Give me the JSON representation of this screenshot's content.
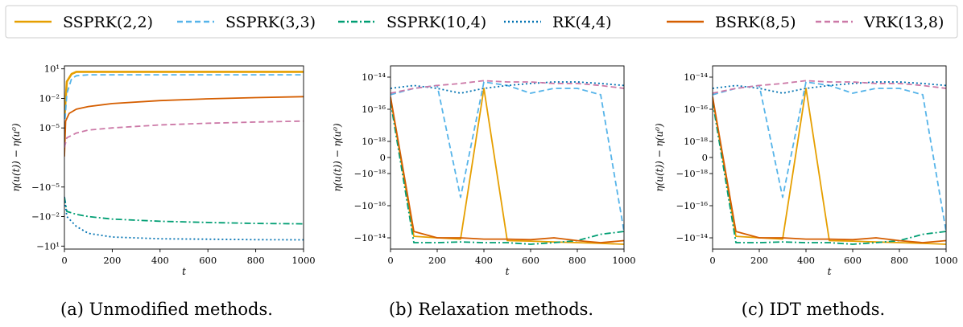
{
  "legend": [
    {
      "name": "SSPRK(2,2)",
      "color": "#e69f00",
      "dash": "solid"
    },
    {
      "name": "SSPRK(3,3)",
      "color": "#56b4e9",
      "dash": "dashed"
    },
    {
      "name": "SSPRK(10,4)",
      "color": "#009e73",
      "dash": "dashdot"
    },
    {
      "name": "RK(4,4)",
      "color": "#0072b2",
      "dash": "dotted"
    },
    {
      "name": "BSRK(8,5)",
      "color": "#d55e00",
      "dash": "solid"
    },
    {
      "name": "VRK(13,8)",
      "color": "#cc79a7",
      "dash": "dashed"
    }
  ],
  "chart_data": [
    {
      "type": "line",
      "caption": "(a) Unmodified methods.",
      "xlabel": "t",
      "ylabel": "η(u(t)) − η(u⁰)",
      "yscale": "symlog",
      "xlim": [
        0,
        1000
      ],
      "xticks": [
        "0",
        "200",
        "400",
        "600",
        "800",
        "1000"
      ],
      "yticks": [
        "10¹",
        "10⁻²",
        "10⁻⁵",
        "−10⁻⁵",
        "−10⁻²",
        "−10¹"
      ],
      "series": [
        {
          "name": "SSPRK(2,2)",
          "x": [
            0,
            10,
            30,
            50,
            100,
            1000
          ],
          "y": [
            0.0001,
            0.5,
            3,
            5,
            5,
            5
          ]
        },
        {
          "name": "SSPRK(3,3)",
          "x": [
            0,
            10,
            30,
            50,
            100,
            1000
          ],
          "y": [
            1e-05,
            0.03,
            1,
            2,
            2.5,
            2.5
          ]
        },
        {
          "name": "SSPRK(10,4)",
          "x": [
            0,
            10,
            50,
            100,
            200,
            400,
            600,
            800,
            1000
          ],
          "y": [
            -0.0001,
            -0.003,
            -0.006,
            -0.01,
            -0.018,
            -0.03,
            -0.04,
            -0.05,
            -0.055
          ]
        },
        {
          "name": "RK(4,4)",
          "x": [
            0,
            10,
            50,
            100,
            200,
            400,
            600,
            800,
            1000
          ],
          "y": [
            -0.0001,
            -0.01,
            -0.1,
            -0.5,
            -1.2,
            -1.8,
            -2.0,
            -2.2,
            -2.3
          ]
        },
        {
          "name": "BSRK(8,5)",
          "x": [
            0,
            5,
            20,
            50,
            100,
            200,
            400,
            600,
            800,
            1000
          ],
          "y": [
            1e-08,
            5e-05,
            0.0003,
            0.0008,
            0.0015,
            0.003,
            0.006,
            0.009,
            0.012,
            0.015
          ]
        },
        {
          "name": "VRK(13,8)",
          "x": [
            0,
            10,
            50,
            100,
            200,
            400,
            600,
            800,
            1000
          ],
          "y": [
            1e-07,
            1e-06,
            3e-06,
            6e-06,
            1e-05,
            2e-05,
            3e-05,
            4e-05,
            5e-05
          ]
        }
      ]
    },
    {
      "type": "line",
      "caption": "(b) Relaxation methods.",
      "xlabel": "t",
      "ylabel": "η(u(t)) − η(u⁰)",
      "yscale": "symlog",
      "xlim": [
        0,
        1000
      ],
      "xticks": [
        "0",
        "200",
        "400",
        "600",
        "800",
        "1000"
      ],
      "yticks": [
        "10⁻¹⁴",
        "10⁻¹⁶",
        "10⁻¹⁸",
        "0",
        "−10⁻¹⁸",
        "−10⁻¹⁶",
        "−10⁻¹⁴"
      ],
      "series": [
        {
          "name": "SSPRK(2,2)",
          "x": [
            0,
            100,
            200,
            300,
            400,
            500,
            600,
            700,
            800,
            900,
            1000
          ],
          "y": [
            5e-16,
            -8e-15,
            -1e-14,
            -1.2e-14,
            2e-15,
            -1.5e-14,
            -1.6e-14,
            -1.8e-14,
            -2e-14,
            -2.2e-14,
            -2.5e-14
          ]
        },
        {
          "name": "SSPRK(3,3)",
          "x": [
            0,
            100,
            200,
            300,
            400,
            500,
            600,
            700,
            800,
            900,
            1000
          ],
          "y": [
            8e-16,
            2e-15,
            3e-15,
            -3e-17,
            5e-15,
            3e-15,
            1e-15,
            2e-15,
            2e-15,
            8e-16,
            -4e-15
          ]
        },
        {
          "name": "SSPRK(10,4)",
          "x": [
            0,
            100,
            200,
            300,
            400,
            500,
            600,
            700,
            800,
            900,
            1000
          ],
          "y": [
            3e-16,
            -2e-14,
            -2e-14,
            -1.8e-14,
            -2e-14,
            -2e-14,
            -2.5e-14,
            -2e-14,
            -1.5e-14,
            -6e-15,
            -4e-15
          ]
        },
        {
          "name": "RK(4,4)",
          "x": [
            0,
            100,
            200,
            300,
            400,
            500,
            600,
            700,
            800,
            900,
            1000
          ],
          "y": [
            2e-15,
            3e-15,
            2e-15,
            1e-15,
            2e-15,
            3e-15,
            4e-15,
            5e-15,
            5e-15,
            4e-15,
            3e-15
          ]
        },
        {
          "name": "BSRK(8,5)",
          "x": [
            0,
            100,
            200,
            300,
            400,
            500,
            600,
            700,
            800,
            900,
            1000
          ],
          "y": [
            6e-16,
            -4e-15,
            -1e-14,
            -1e-14,
            -1.2e-14,
            -1.2e-14,
            -1.3e-14,
            -1e-14,
            -1.5e-14,
            -2e-14,
            -1.5e-14
          ]
        },
        {
          "name": "VRK(13,8)",
          "x": [
            0,
            100,
            200,
            300,
            400,
            500,
            600,
            700,
            800,
            900,
            1000
          ],
          "y": [
            1e-15,
            2e-15,
            3e-15,
            4e-15,
            6e-15,
            5e-15,
            5e-15,
            4e-15,
            4e-15,
            3e-15,
            2e-15
          ]
        }
      ]
    },
    {
      "type": "line",
      "caption": "(c) IDT methods.",
      "xlabel": "t",
      "ylabel": "η(u(t)) − η(u⁰)",
      "yscale": "symlog",
      "xlim": [
        0,
        1000
      ],
      "xticks": [
        "0",
        "200",
        "400",
        "600",
        "800",
        "1000"
      ],
      "yticks": [
        "10⁻¹⁴",
        "10⁻¹⁶",
        "10⁻¹⁸",
        "0",
        "−10⁻¹⁸",
        "−10⁻¹⁶",
        "−10⁻¹⁴"
      ],
      "series": [
        {
          "name": "SSPRK(2,2)",
          "x": [
            0,
            100,
            200,
            300,
            400,
            500,
            600,
            700,
            800,
            900,
            1000
          ],
          "y": [
            5e-16,
            -8e-15,
            -1e-14,
            -1.2e-14,
            2e-15,
            -1.5e-14,
            -1.6e-14,
            -1.8e-14,
            -2e-14,
            -2.2e-14,
            -2.5e-14
          ]
        },
        {
          "name": "SSPRK(3,3)",
          "x": [
            0,
            100,
            200,
            300,
            400,
            500,
            600,
            700,
            800,
            900,
            1000
          ],
          "y": [
            8e-16,
            2e-15,
            3e-15,
            -3e-17,
            5e-15,
            3e-15,
            1e-15,
            2e-15,
            2e-15,
            8e-16,
            -4e-15
          ]
        },
        {
          "name": "SSPRK(10,4)",
          "x": [
            0,
            100,
            200,
            300,
            400,
            500,
            600,
            700,
            800,
            900,
            1000
          ],
          "y": [
            3e-16,
            -2e-14,
            -2e-14,
            -1.8e-14,
            -2e-14,
            -2e-14,
            -2.5e-14,
            -2e-14,
            -1.5e-14,
            -6e-15,
            -4e-15
          ]
        },
        {
          "name": "RK(4,4)",
          "x": [
            0,
            100,
            200,
            300,
            400,
            500,
            600,
            700,
            800,
            900,
            1000
          ],
          "y": [
            2e-15,
            3e-15,
            2e-15,
            1e-15,
            2e-15,
            3e-15,
            4e-15,
            5e-15,
            5e-15,
            4e-15,
            3e-15
          ]
        },
        {
          "name": "BSRK(8,5)",
          "x": [
            0,
            100,
            200,
            300,
            400,
            500,
            600,
            700,
            800,
            900,
            1000
          ],
          "y": [
            6e-16,
            -4e-15,
            -1e-14,
            -1e-14,
            -1.2e-14,
            -1.2e-14,
            -1.3e-14,
            -1e-14,
            -1.5e-14,
            -2e-14,
            -1.5e-14
          ]
        },
        {
          "name": "VRK(13,8)",
          "x": [
            0,
            100,
            200,
            300,
            400,
            500,
            600,
            700,
            800,
            900,
            1000
          ],
          "y": [
            1e-15,
            2e-15,
            3e-15,
            4e-15,
            6e-15,
            5e-15,
            5e-15,
            4e-15,
            4e-15,
            3e-15,
            2e-15
          ]
        }
      ]
    }
  ]
}
